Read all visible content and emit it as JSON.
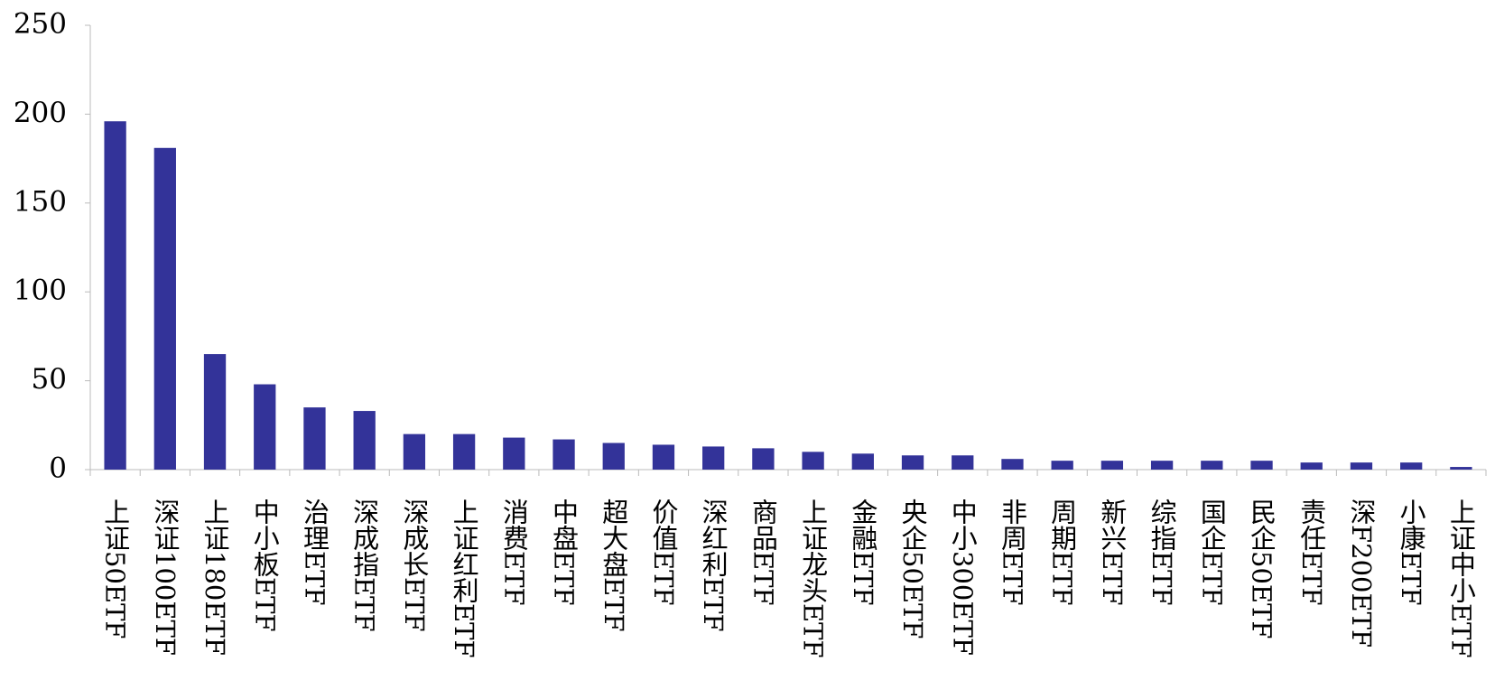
{
  "chart_data": {
    "type": "bar",
    "categories": [
      "上证50ETF",
      "深证100ETF",
      "上证180ETF",
      "中小板ETF",
      "治理ETF",
      "深成指ETF",
      "深成长ETF",
      "上证红利ETF",
      "消费ETF",
      "中盘ETF",
      "超大盘ETF",
      "价值ETF",
      "深红利ETF",
      "商品ETF",
      "上证龙头ETF",
      "金融ETF",
      "央企50ETF",
      "中小300ETF",
      "非周ETF",
      "周期ETF",
      "新兴ETF",
      "综指ETF",
      "国企ETF",
      "民企50ETF",
      "责任ETF",
      "深F200ETF",
      "小康ETF",
      "上证中小ETF"
    ],
    "values": [
      196,
      181,
      65,
      48,
      35,
      33,
      20,
      20,
      18,
      17,
      15,
      14,
      13,
      12,
      10,
      9,
      8,
      8,
      6,
      5,
      5,
      5,
      5,
      5,
      4,
      4,
      4,
      1.5
    ],
    "color": "#333399",
    "ylim": [
      0,
      250
    ],
    "yticks": [
      0,
      50,
      100,
      150,
      200,
      250
    ],
    "grid": false
  }
}
